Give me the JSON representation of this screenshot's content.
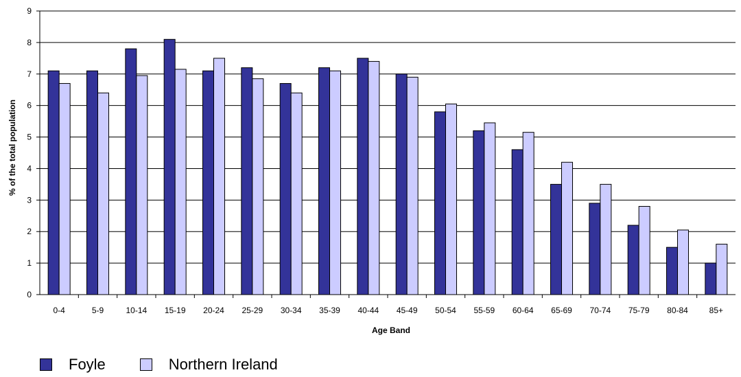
{
  "chart_data": {
    "type": "bar",
    "title": "",
    "xlabel": "Age Band",
    "ylabel": "% of the total population",
    "categories": [
      "0-4",
      "5-9",
      "10-14",
      "15-19",
      "20-24",
      "25-29",
      "30-34",
      "35-39",
      "40-44",
      "45-49",
      "50-54",
      "55-59",
      "60-64",
      "65-69",
      "70-74",
      "75-79",
      "80-84",
      "85+"
    ],
    "series": [
      {
        "name": "Foyle",
        "color": "#333399",
        "values": [
          7.1,
          7.1,
          7.8,
          8.1,
          7.1,
          7.2,
          6.7,
          7.2,
          7.5,
          7.0,
          5.8,
          5.2,
          4.6,
          3.5,
          2.9,
          2.2,
          1.5,
          1.0
        ]
      },
      {
        "name": "Northern Ireland",
        "color": "#CCCCFF",
        "values": [
          6.7,
          6.4,
          6.95,
          7.15,
          7.5,
          6.85,
          6.4,
          7.1,
          7.4,
          6.9,
          6.05,
          5.45,
          5.15,
          4.2,
          3.5,
          2.8,
          2.05,
          1.6
        ]
      }
    ],
    "ylim": [
      0,
      9
    ],
    "yticks": [
      0,
      1,
      2,
      3,
      4,
      5,
      6,
      7,
      8,
      9
    ],
    "grid": true,
    "legend_position": "bottom-left"
  }
}
